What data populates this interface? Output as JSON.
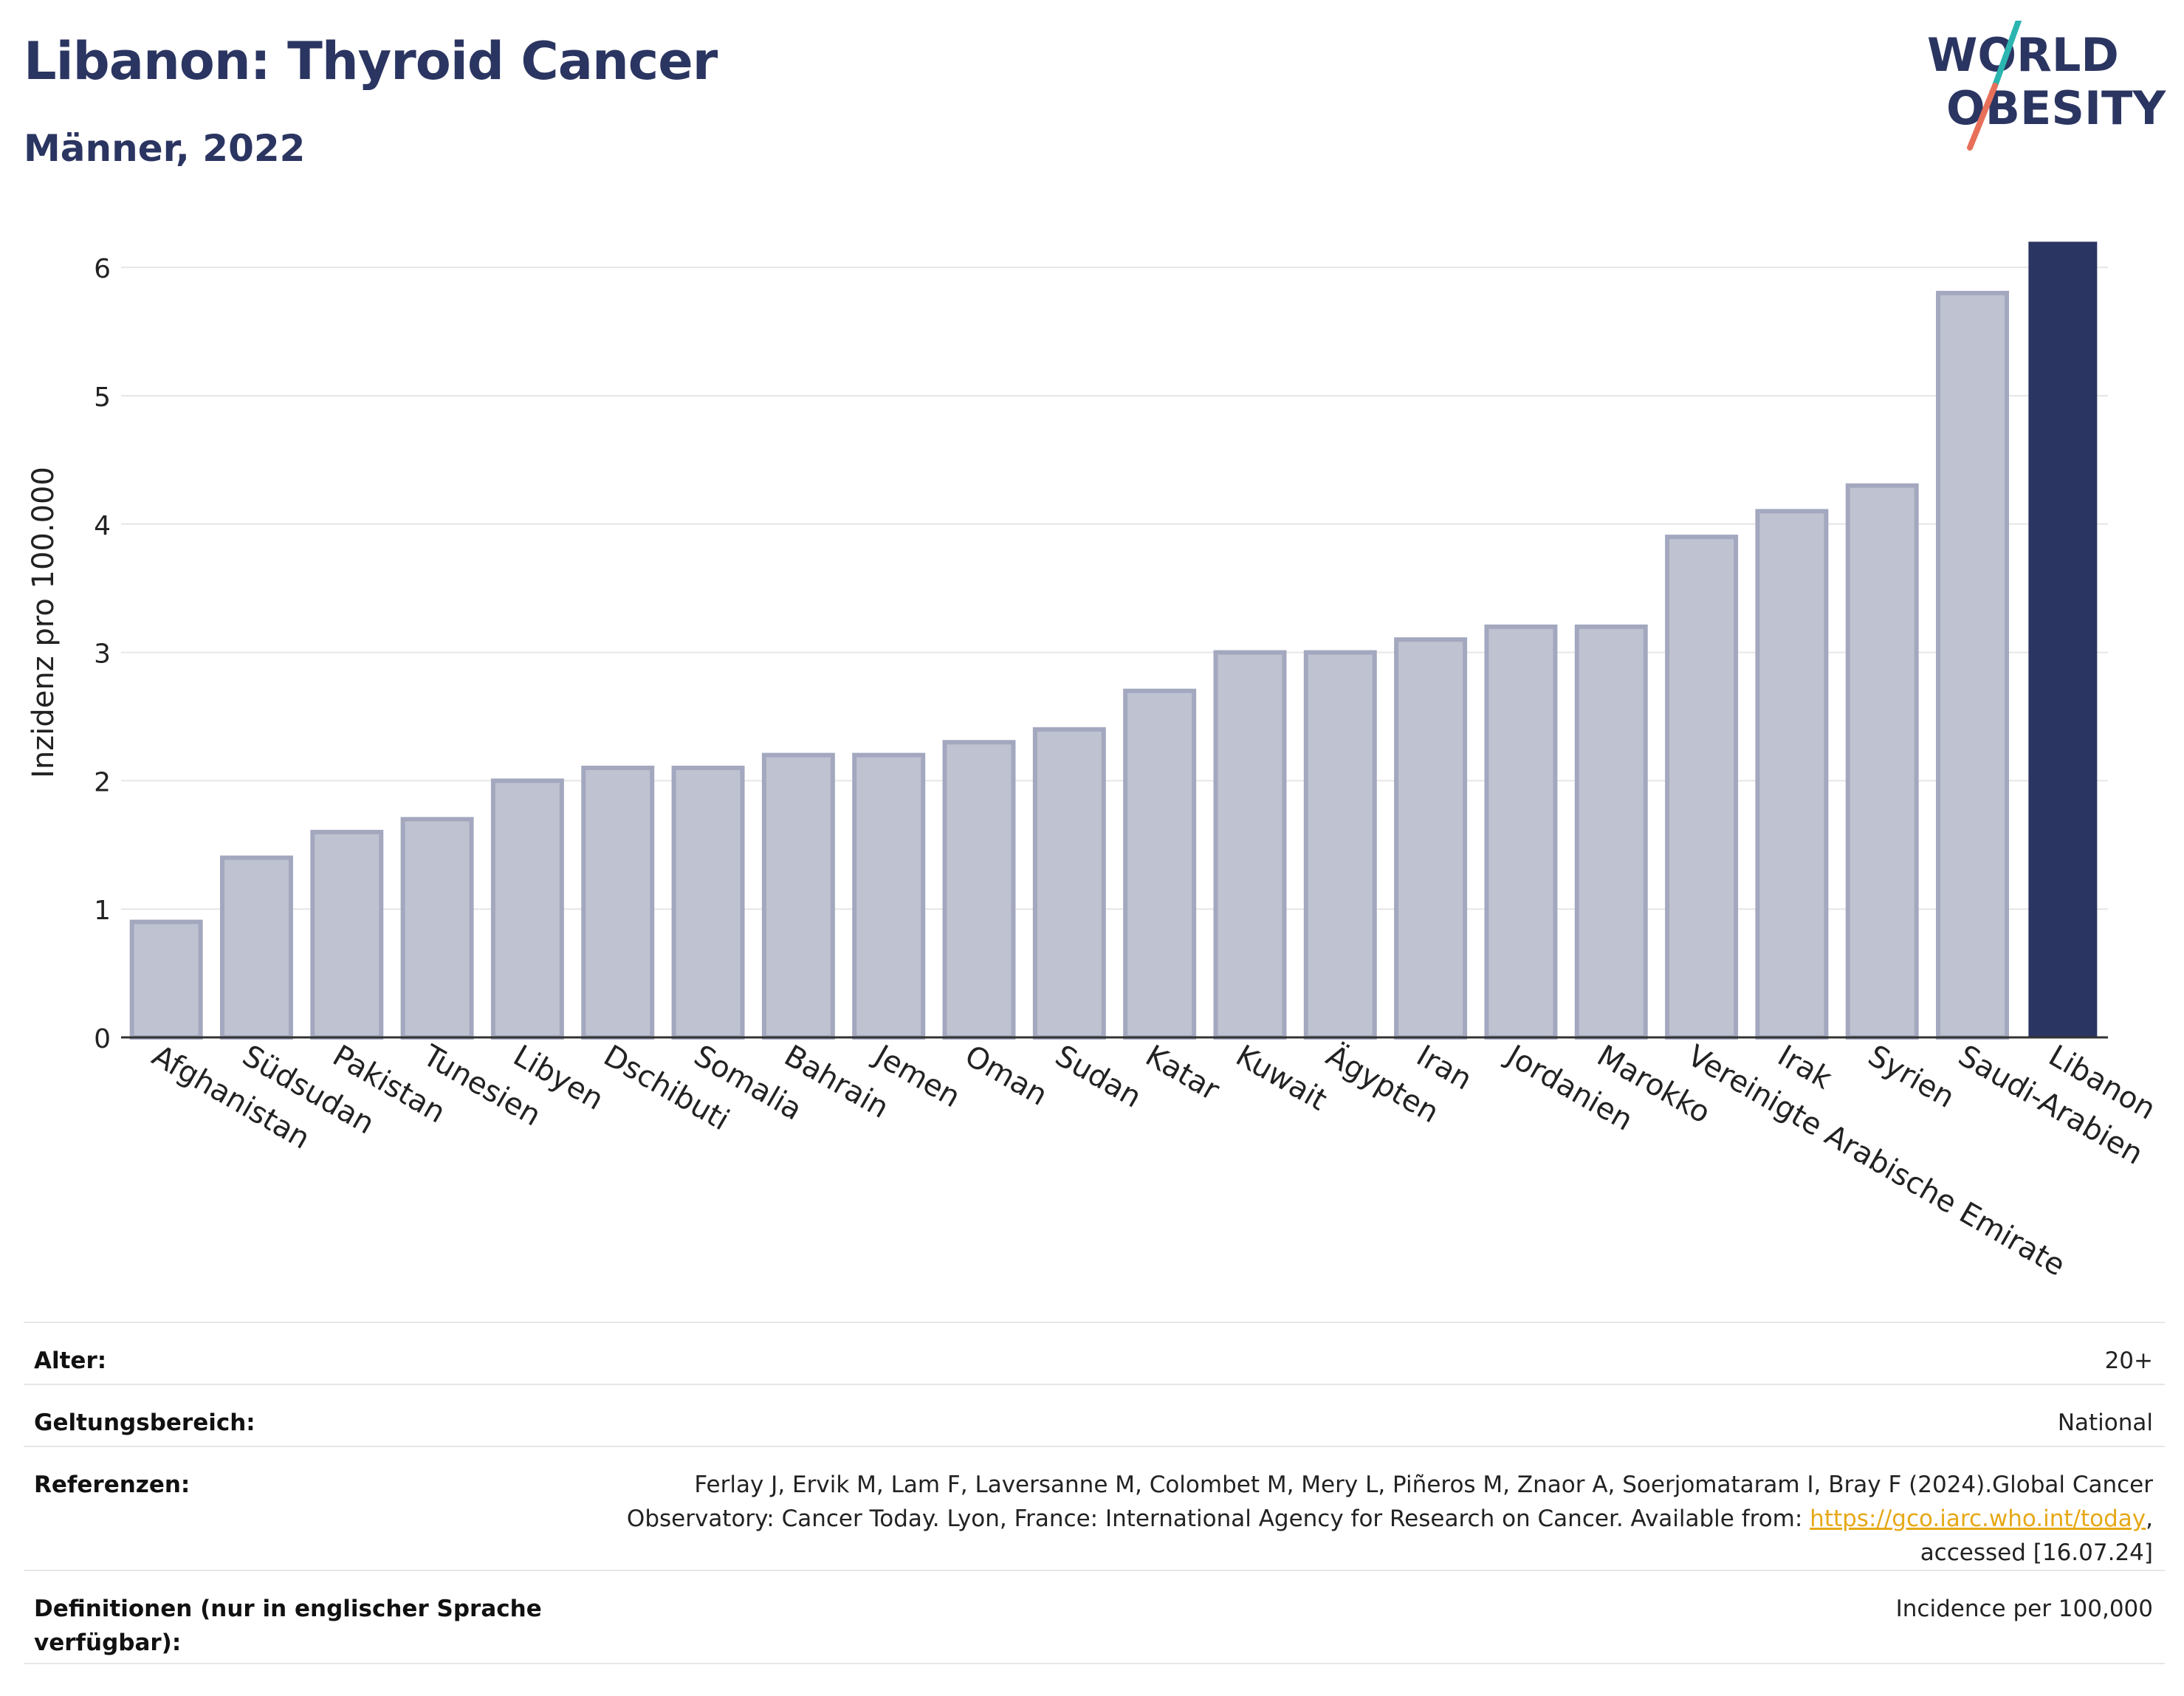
{
  "header": {
    "title": "Libanon: Thyroid Cancer",
    "subtitle": "Männer, 2022"
  },
  "logo": {
    "line1": "WORLD",
    "line2": "OBESITY",
    "colors": {
      "text": "#2b3561",
      "slash_top": "#2bb5b0",
      "slash_bottom": "#e8705a"
    }
  },
  "chart_data": {
    "type": "bar",
    "title": "",
    "xlabel": "",
    "ylabel": "Inzidenz pro 100.000",
    "ylim": [
      0,
      6.3
    ],
    "yticks": [
      0,
      1,
      2,
      3,
      4,
      5,
      6
    ],
    "grid": true,
    "categories": [
      "Afghanistan",
      "Südsudan",
      "Pakistan",
      "Tunesien",
      "Libyen",
      "Dschibuti",
      "Somalia",
      "Bahrain",
      "Jemen",
      "Oman",
      "Sudan",
      "Katar",
      "Kuwait",
      "Ägypten",
      "Iran",
      "Jordanien",
      "Marokko",
      "Vereinigte Arabische Emirate",
      "Irak",
      "Syrien",
      "Saudi-Arabien",
      "Libanon"
    ],
    "values": [
      0.9,
      1.4,
      1.6,
      1.7,
      2.0,
      2.1,
      2.1,
      2.2,
      2.2,
      2.3,
      2.4,
      2.7,
      3.0,
      3.0,
      3.1,
      3.2,
      3.2,
      3.9,
      4.1,
      4.3,
      5.8,
      6.2
    ],
    "highlight": "Libanon",
    "colors": {
      "bar": "#bfc2d0",
      "bar_border": "#a3a8bf",
      "highlight": "#2b3561",
      "grid": "#e6e6e6",
      "axis": "#333333"
    }
  },
  "meta": {
    "rows": [
      {
        "label": "Alter:",
        "value": "20+"
      },
      {
        "label": "Geltungsbereich:",
        "value": "National"
      },
      {
        "label": "Referenzen:",
        "value_before": "Ferlay J, Ervik M, Lam F, Laversanne M, Colombet M, Mery L, Piñeros M, Znaor A, Soerjomataram I, Bray F (2024).Global Cancer Observatory: Cancer Today. Lyon, France: International Agency for Research on Cancer. Available from: ",
        "link": "https://gco.iarc.who.int/today",
        "value_after": ", accessed [16.07.24]"
      },
      {
        "label": "Definitionen (nur in englischer Sprache verfügbar):",
        "value": "Incidence per 100,000"
      }
    ]
  }
}
